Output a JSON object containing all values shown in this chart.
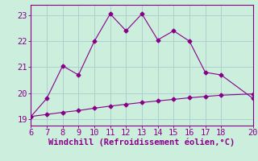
{
  "upper_x": [
    6,
    7,
    8,
    9,
    10,
    11,
    12,
    13,
    14,
    15,
    16,
    17,
    18,
    20
  ],
  "upper_y": [
    19.1,
    19.8,
    21.05,
    20.7,
    22.0,
    23.05,
    22.4,
    23.05,
    22.05,
    22.4,
    22.0,
    20.8,
    20.7,
    19.8
  ],
  "lower_x": [
    6,
    7,
    8,
    9,
    10,
    11,
    12,
    13,
    14,
    15,
    16,
    17,
    18,
    20
  ],
  "lower_y": [
    19.1,
    19.18,
    19.26,
    19.33,
    19.42,
    19.5,
    19.57,
    19.64,
    19.7,
    19.76,
    19.82,
    19.87,
    19.92,
    19.97
  ],
  "line_color": "#880088",
  "bg_color": "#cceedd",
  "grid_color": "#aacccc",
  "xlabel": "Windchill (Refroidissement éolien,°C)",
  "xlim": [
    6,
    20
  ],
  "ylim": [
    18.75,
    23.4
  ],
  "yticks": [
    19,
    20,
    21,
    22,
    23
  ],
  "xticks": [
    6,
    7,
    8,
    9,
    10,
    11,
    12,
    13,
    14,
    15,
    16,
    17,
    18,
    20
  ],
  "marker": "D",
  "markersize": 2.5,
  "linewidth": 0.8,
  "tick_fontsize": 7.5,
  "xlabel_fontsize": 7.5
}
